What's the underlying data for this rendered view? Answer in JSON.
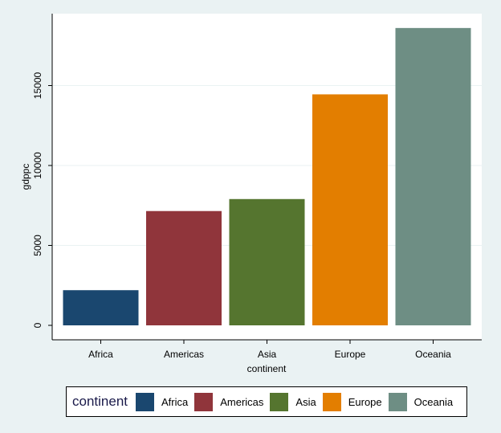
{
  "chart_data": {
    "type": "bar",
    "categories": [
      "Africa",
      "Americas",
      "Asia",
      "Europe",
      "Oceania"
    ],
    "values": [
      2200,
      7150,
      7900,
      14450,
      18600
    ],
    "colors": [
      "#1a476f",
      "#90353b",
      "#55752f",
      "#e37e00",
      "#6e8e84"
    ],
    "title": "",
    "xlabel": "continent",
    "ylabel": "gdppc",
    "ylim": [
      0,
      19000
    ],
    "yticks": [
      0,
      5000,
      10000,
      15000
    ],
    "grid": true,
    "legend": {
      "title": "continent",
      "entries": [
        "Africa",
        "Americas",
        "Asia",
        "Europe",
        "Oceania"
      ],
      "position": "bottom"
    }
  }
}
